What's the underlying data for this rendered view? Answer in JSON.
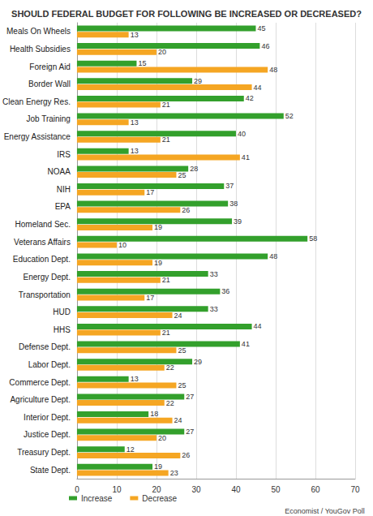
{
  "chart_data": {
    "type": "bar",
    "title": "SHOULD FEDERAL BUDGET FOR FOLLOWING BE INCREASED OR DECREASED?",
    "orientation": "horizontal",
    "categories": [
      "Meals On Wheels",
      "Health Subsidies",
      "Foreign Aid",
      "Border Wall",
      "Clean Energy Res.",
      "Job Training",
      "Energy Assistance",
      "IRS",
      "NOAA",
      "NIH",
      "EPA",
      "Homeland Sec.",
      "Veterans Affairs",
      "Education Dept.",
      "Energy Dept.",
      "Transportation",
      "HUD",
      "HHS",
      "Defense Dept.",
      "Labor Dept.",
      "Commerce Dept.",
      "Agriculture Dept.",
      "Interior Dept.",
      "Justice Dept.",
      "Treasury Dept.",
      "State Dept."
    ],
    "series": [
      {
        "name": "Increase",
        "color": "#33a02c",
        "values": [
          45,
          46,
          15,
          29,
          42,
          52,
          40,
          13,
          28,
          37,
          38,
          39,
          58,
          48,
          33,
          36,
          33,
          44,
          41,
          29,
          13,
          27,
          18,
          27,
          12,
          19
        ]
      },
      {
        "name": "Decrease",
        "color": "#f5a623",
        "values": [
          13,
          20,
          48,
          44,
          21,
          13,
          21,
          41,
          25,
          17,
          26,
          19,
          10,
          19,
          21,
          17,
          24,
          21,
          25,
          22,
          25,
          22,
          24,
          20,
          26,
          23
        ]
      }
    ],
    "xlim": [
      0,
      70
    ],
    "xticks": [
      0,
      10,
      20,
      30,
      40,
      50,
      60,
      70
    ],
    "grid": true,
    "legend": "bottom-left",
    "data_labels": true,
    "annotations": [
      "Economist / YouGov Poll"
    ]
  }
}
